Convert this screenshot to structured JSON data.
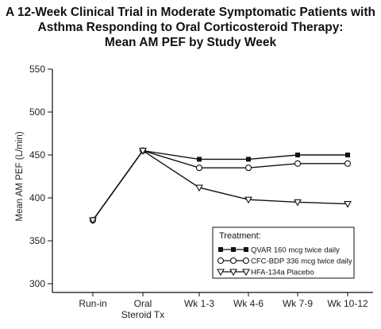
{
  "chart_data": {
    "type": "line",
    "title_lines": [
      "A 12-Week Clinical Trial in Moderate Symptomatic Patients with",
      "Asthma Responding to Oral Corticosteroid Therapy:",
      "Mean AM PEF by Study Week"
    ],
    "ylabel": "Mean AM PEF (L/min)",
    "xlabel": "",
    "ylim": [
      300,
      550
    ],
    "yticks": [
      300,
      350,
      400,
      450,
      500,
      550
    ],
    "categories": [
      [
        "Run-in"
      ],
      [
        "Oral",
        "Steroid Tx"
      ],
      [
        "Wk 1-3"
      ],
      [
        "Wk 4-6"
      ],
      [
        "Wk 7-9"
      ],
      [
        "Wk 10-12"
      ]
    ],
    "grid": false,
    "legend_position": "bottom-right",
    "legend_title": "Treatment:",
    "series": [
      {
        "name": "QVAR 160 mcg twice daily",
        "marker": "filled-square",
        "values": [
          374,
          455,
          445,
          445,
          450,
          450
        ]
      },
      {
        "name": "CFC-BDP 336 mcg twice daily",
        "marker": "open-circle",
        "values": [
          374,
          455,
          435,
          435,
          440,
          440
        ]
      },
      {
        "name": "HFA-134a Placebo",
        "marker": "open-triangle-down",
        "values": [
          374,
          455,
          412,
          398,
          395,
          393
        ]
      }
    ]
  }
}
